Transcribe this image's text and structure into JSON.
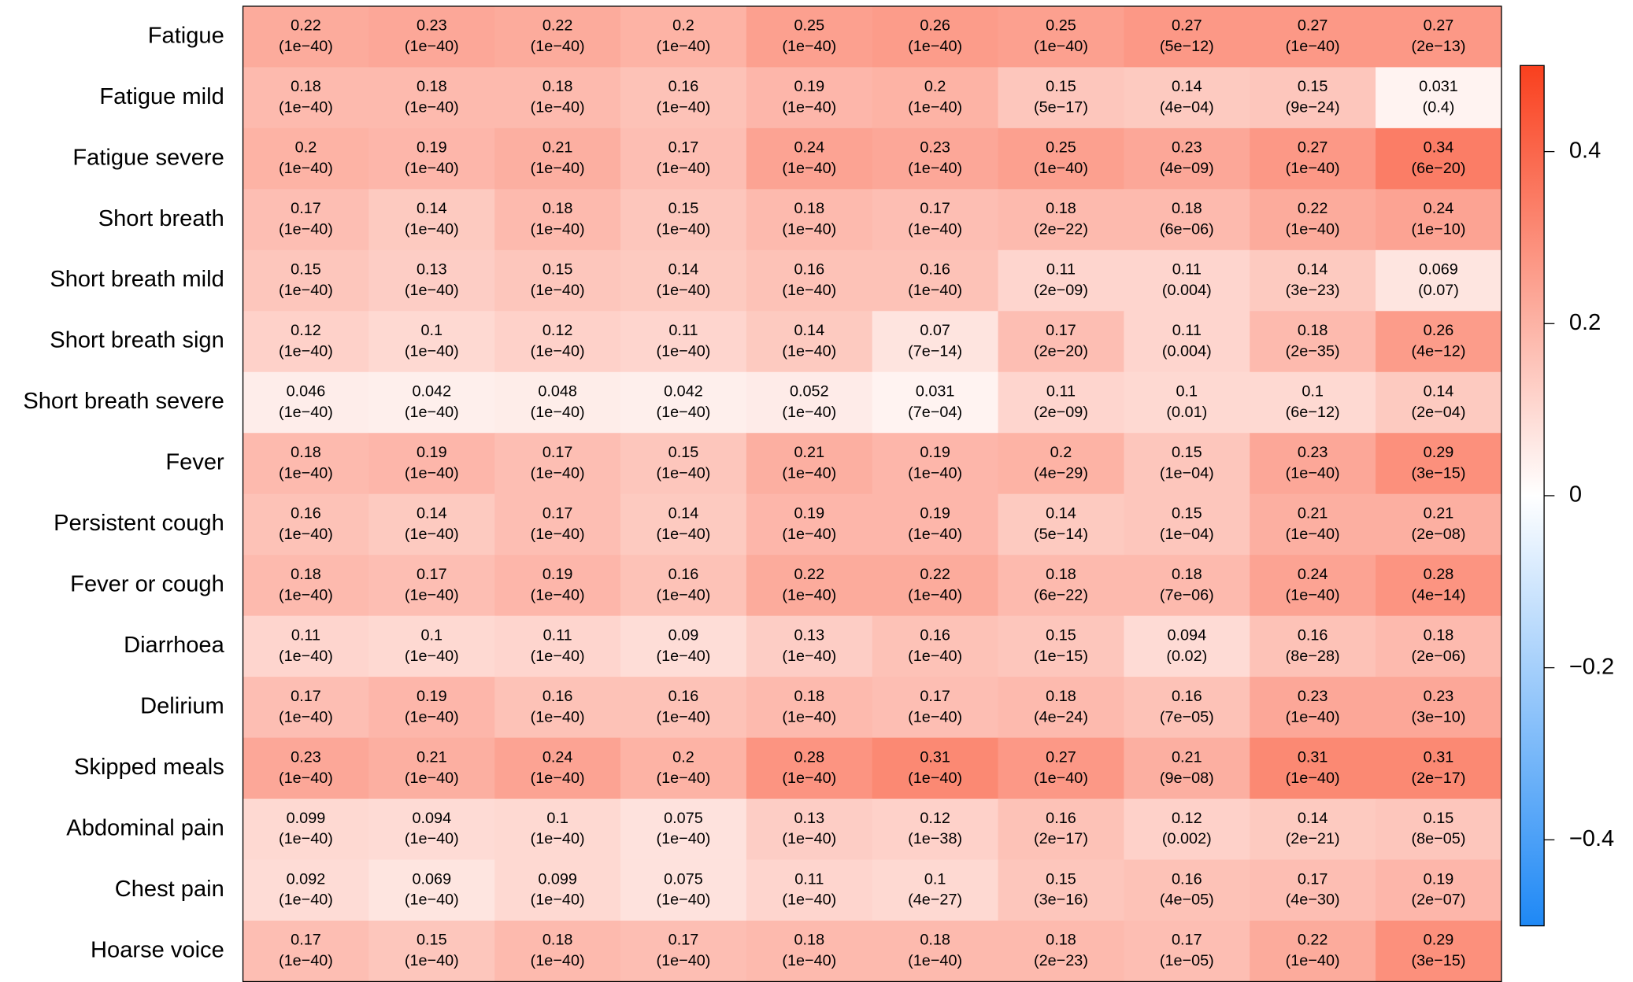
{
  "chart_data": {
    "type": "heatmap",
    "rows": [
      "Fatigue",
      "Fatigue mild",
      "Fatigue severe",
      "Short breath",
      "Short breath mild",
      "Short breath sign",
      "Short breath severe",
      "Fever",
      "Persistent cough",
      "Fever or cough",
      "Diarrhoea",
      "Delirium",
      "Skipped meals",
      "Abdominal pain",
      "Chest pain",
      "Hoarse voice"
    ],
    "values": [
      [
        0.22,
        0.23,
        0.22,
        0.2,
        0.25,
        0.26,
        0.25,
        0.27,
        0.27,
        0.27
      ],
      [
        0.18,
        0.18,
        0.18,
        0.16,
        0.19,
        0.2,
        0.15,
        0.14,
        0.15,
        0.031
      ],
      [
        0.2,
        0.19,
        0.21,
        0.17,
        0.24,
        0.23,
        0.25,
        0.23,
        0.27,
        0.34
      ],
      [
        0.17,
        0.14,
        0.18,
        0.15,
        0.18,
        0.17,
        0.18,
        0.18,
        0.22,
        0.24
      ],
      [
        0.15,
        0.13,
        0.15,
        0.14,
        0.16,
        0.16,
        0.11,
        0.11,
        0.14,
        0.069
      ],
      [
        0.12,
        0.1,
        0.12,
        0.11,
        0.14,
        0.07,
        0.17,
        0.11,
        0.18,
        0.26
      ],
      [
        0.046,
        0.042,
        0.048,
        0.042,
        0.052,
        0.031,
        0.11,
        0.1,
        0.1,
        0.14
      ],
      [
        0.18,
        0.19,
        0.17,
        0.15,
        0.21,
        0.19,
        0.2,
        0.15,
        0.23,
        0.29
      ],
      [
        0.16,
        0.14,
        0.17,
        0.14,
        0.19,
        0.19,
        0.14,
        0.15,
        0.21,
        0.21
      ],
      [
        0.18,
        0.17,
        0.19,
        0.16,
        0.22,
        0.22,
        0.18,
        0.18,
        0.24,
        0.28
      ],
      [
        0.11,
        0.1,
        0.11,
        0.09,
        0.13,
        0.16,
        0.15,
        0.094,
        0.16,
        0.18
      ],
      [
        0.17,
        0.19,
        0.16,
        0.16,
        0.18,
        0.17,
        0.18,
        0.16,
        0.23,
        0.23
      ],
      [
        0.23,
        0.21,
        0.24,
        0.2,
        0.28,
        0.31,
        0.27,
        0.21,
        0.31,
        0.31
      ],
      [
        0.099,
        0.094,
        0.1,
        0.075,
        0.13,
        0.12,
        0.16,
        0.12,
        0.14,
        0.15
      ],
      [
        0.092,
        0.069,
        0.099,
        0.075,
        0.11,
        0.1,
        0.15,
        0.16,
        0.17,
        0.19
      ],
      [
        0.17,
        0.15,
        0.18,
        0.17,
        0.18,
        0.18,
        0.18,
        0.17,
        0.22,
        0.29
      ]
    ],
    "p_labels": [
      [
        "(1e−40)",
        "(1e−40)",
        "(1e−40)",
        "(1e−40)",
        "(1e−40)",
        "(1e−40)",
        "(1e−40)",
        "(5e−12)",
        "(1e−40)",
        "(2e−13)"
      ],
      [
        "(1e−40)",
        "(1e−40)",
        "(1e−40)",
        "(1e−40)",
        "(1e−40)",
        "(1e−40)",
        "(5e−17)",
        "(4e−04)",
        "(9e−24)",
        "(0.4)"
      ],
      [
        "(1e−40)",
        "(1e−40)",
        "(1e−40)",
        "(1e−40)",
        "(1e−40)",
        "(1e−40)",
        "(1e−40)",
        "(4e−09)",
        "(1e−40)",
        "(6e−20)"
      ],
      [
        "(1e−40)",
        "(1e−40)",
        "(1e−40)",
        "(1e−40)",
        "(1e−40)",
        "(1e−40)",
        "(2e−22)",
        "(6e−06)",
        "(1e−40)",
        "(1e−10)"
      ],
      [
        "(1e−40)",
        "(1e−40)",
        "(1e−40)",
        "(1e−40)",
        "(1e−40)",
        "(1e−40)",
        "(2e−09)",
        "(0.004)",
        "(3e−23)",
        "(0.07)"
      ],
      [
        "(1e−40)",
        "(1e−40)",
        "(1e−40)",
        "(1e−40)",
        "(1e−40)",
        "(7e−14)",
        "(2e−20)",
        "(0.004)",
        "(2e−35)",
        "(4e−12)"
      ],
      [
        "(1e−40)",
        "(1e−40)",
        "(1e−40)",
        "(1e−40)",
        "(1e−40)",
        "(7e−04)",
        "(2e−09)",
        "(0.01)",
        "(6e−12)",
        "(2e−04)"
      ],
      [
        "(1e−40)",
        "(1e−40)",
        "(1e−40)",
        "(1e−40)",
        "(1e−40)",
        "(1e−40)",
        "(4e−29)",
        "(1e−04)",
        "(1e−40)",
        "(3e−15)"
      ],
      [
        "(1e−40)",
        "(1e−40)",
        "(1e−40)",
        "(1e−40)",
        "(1e−40)",
        "(1e−40)",
        "(5e−14)",
        "(1e−04)",
        "(1e−40)",
        "(2e−08)"
      ],
      [
        "(1e−40)",
        "(1e−40)",
        "(1e−40)",
        "(1e−40)",
        "(1e−40)",
        "(1e−40)",
        "(6e−22)",
        "(7e−06)",
        "(1e−40)",
        "(4e−14)"
      ],
      [
        "(1e−40)",
        "(1e−40)",
        "(1e−40)",
        "(1e−40)",
        "(1e−40)",
        "(1e−40)",
        "(1e−15)",
        "(0.02)",
        "(8e−28)",
        "(2e−06)"
      ],
      [
        "(1e−40)",
        "(1e−40)",
        "(1e−40)",
        "(1e−40)",
        "(1e−40)",
        "(1e−40)",
        "(4e−24)",
        "(7e−05)",
        "(1e−40)",
        "(3e−10)"
      ],
      [
        "(1e−40)",
        "(1e−40)",
        "(1e−40)",
        "(1e−40)",
        "(1e−40)",
        "(1e−40)",
        "(1e−40)",
        "(9e−08)",
        "(1e−40)",
        "(2e−17)"
      ],
      [
        "(1e−40)",
        "(1e−40)",
        "(1e−40)",
        "(1e−40)",
        "(1e−40)",
        "(1e−38)",
        "(2e−17)",
        "(0.002)",
        "(2e−21)",
        "(8e−05)"
      ],
      [
        "(1e−40)",
        "(1e−40)",
        "(1e−40)",
        "(1e−40)",
        "(1e−40)",
        "(4e−27)",
        "(3e−16)",
        "(4e−05)",
        "(4e−30)",
        "(2e−07)"
      ],
      [
        "(1e−40)",
        "(1e−40)",
        "(1e−40)",
        "(1e−40)",
        "(1e−40)",
        "(1e−40)",
        "(2e−23)",
        "(1e−05)",
        "(1e−40)",
        "(3e−15)"
      ]
    ],
    "zlim": [
      -0.5,
      0.5
    ],
    "zticks": [
      0.4,
      0.2,
      0,
      {
        "value": -0.2,
        "label": "−0.2"
      },
      {
        "value": -0.4,
        "label": "−0.4"
      }
    ],
    "colorscale": [
      "#1e88f5",
      "#ffffff",
      "#f9401e"
    ]
  }
}
